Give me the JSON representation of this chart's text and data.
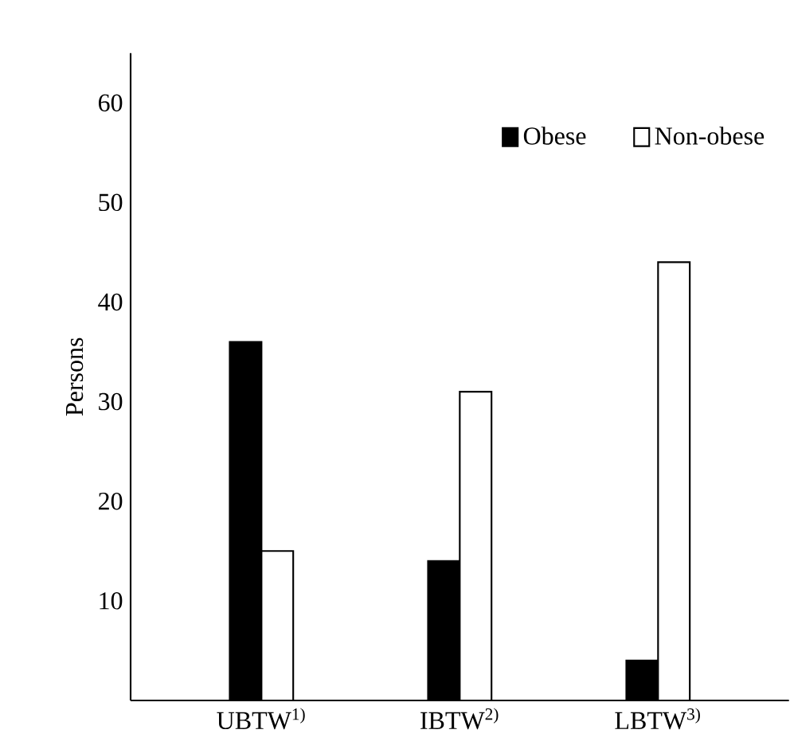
{
  "chart_data": {
    "type": "bar",
    "ylabel": "Persons",
    "categories": [
      "UBTW$^{1)}$",
      "IBTW$^{2)}$",
      "LBTW$^{3)}$"
    ],
    "series": [
      {
        "name": "Obese",
        "color": "#000000",
        "values": [
          36,
          14,
          4
        ]
      },
      {
        "name": "Non-obese",
        "color": "#ffffff",
        "values": [
          15,
          31,
          44
        ]
      }
    ],
    "ylim": [
      0,
      65
    ],
    "yticks": [
      10,
      20,
      30,
      40,
      50,
      60
    ],
    "grid": false,
    "legend": "top right"
  }
}
